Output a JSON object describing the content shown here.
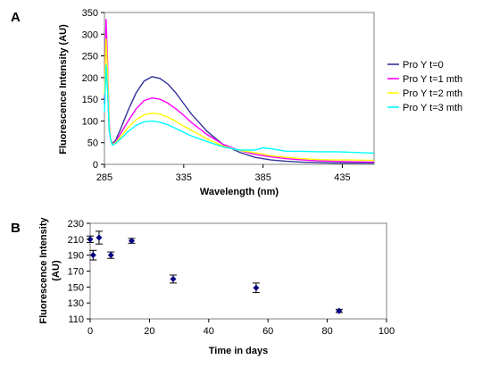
{
  "chart_data": [
    {
      "panel": "A",
      "type": "line",
      "title": "",
      "xlabel": "Wavelength (nm)",
      "ylabel": "Fluorescence Intensity (AU)",
      "xlim": [
        285,
        455
      ],
      "ylim": [
        0,
        350
      ],
      "xticks": [
        "285",
        "335",
        "385",
        "435"
      ],
      "yticks": [
        "0",
        "50",
        "100",
        "150",
        "200",
        "250",
        "300",
        "350"
      ],
      "grid": false,
      "legend_position": "right",
      "series": [
        {
          "name": "Pro Y t=0",
          "color": "#333399",
          "x": [
            285,
            286,
            287,
            288,
            289,
            290,
            292,
            295,
            300,
            305,
            310,
            315,
            320,
            325,
            330,
            335,
            340,
            350,
            360,
            370,
            380,
            390,
            400,
            410,
            420,
            430,
            440,
            455
          ],
          "y": [
            140,
            225,
            175,
            80,
            55,
            48,
            55,
            80,
            125,
            165,
            192,
            202,
            198,
            185,
            165,
            140,
            115,
            75,
            45,
            28,
            16,
            10,
            7,
            5,
            4,
            3,
            3,
            3
          ]
        },
        {
          "name": "Pro Y t=1 mth",
          "color": "#ff00ff",
          "x": [
            285,
            286,
            287,
            288,
            289,
            290,
            292,
            295,
            300,
            305,
            310,
            315,
            320,
            325,
            330,
            335,
            340,
            350,
            360,
            370,
            380,
            390,
            400,
            410,
            420,
            430,
            440,
            455
          ],
          "y": [
            150,
            335,
            230,
            95,
            55,
            46,
            52,
            70,
            100,
            128,
            147,
            153,
            150,
            141,
            128,
            113,
            96,
            68,
            46,
            32,
            23,
            17,
            13,
            10,
            8,
            7,
            6,
            5
          ]
        },
        {
          "name": "Pro Y t=2 mth",
          "color": "#ffff00",
          "x": [
            285,
            286,
            287,
            288,
            289,
            290,
            292,
            295,
            300,
            305,
            310,
            315,
            320,
            325,
            330,
            335,
            340,
            350,
            360,
            370,
            380,
            390,
            400,
            410,
            420,
            430,
            440,
            455
          ],
          "y": [
            160,
            290,
            210,
            90,
            55,
            45,
            50,
            63,
            85,
            103,
            114,
            118,
            116,
            109,
            99,
            88,
            78,
            58,
            42,
            32,
            27,
            20,
            16,
            13,
            11,
            10,
            10,
            9
          ]
        },
        {
          "name": "Pro Y t=3 mth",
          "color": "#00ffff",
          "x": [
            285,
            286,
            287,
            288,
            289,
            290,
            292,
            295,
            300,
            305,
            310,
            315,
            320,
            325,
            330,
            335,
            340,
            350,
            360,
            370,
            380,
            385,
            390,
            395,
            400,
            410,
            420,
            430,
            440,
            455
          ],
          "y": [
            120,
            230,
            170,
            80,
            55,
            44,
            48,
            58,
            76,
            90,
            98,
            100,
            97,
            91,
            83,
            74,
            65,
            52,
            40,
            33,
            33,
            38,
            36,
            33,
            30,
            30,
            29,
            29,
            28,
            26
          ]
        }
      ]
    },
    {
      "panel": "B",
      "type": "scatter",
      "title": "",
      "xlabel": "Time in days",
      "ylabel": "Fluorescence Intensity (AU)",
      "xlim": [
        0,
        100
      ],
      "ylim": [
        110,
        230
      ],
      "xticks": [
        "0",
        "20",
        "40",
        "60",
        "80",
        "100"
      ],
      "yticks": [
        "110",
        "130",
        "150",
        "170",
        "190",
        "210",
        "230"
      ],
      "grid": false,
      "error_bars": true,
      "marker": "diamond",
      "color": "#000080",
      "points": [
        {
          "x": 0,
          "y": 210,
          "err": 4
        },
        {
          "x": 1,
          "y": 190,
          "err": 6
        },
        {
          "x": 3,
          "y": 212,
          "err": 8
        },
        {
          "x": 7,
          "y": 190,
          "err": 4
        },
        {
          "x": 14,
          "y": 208,
          "err": 3
        },
        {
          "x": 28,
          "y": 160,
          "err": 5
        },
        {
          "x": 56,
          "y": 149,
          "err": 6
        },
        {
          "x": 84,
          "y": 120,
          "err": 2
        }
      ]
    }
  ]
}
